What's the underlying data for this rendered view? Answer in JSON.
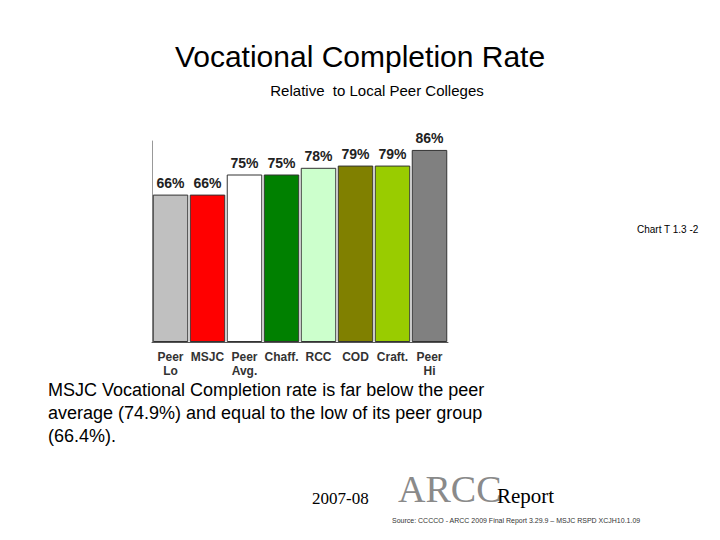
{
  "chart_data": {
    "type": "bar",
    "title": "Vocational Completion Rate",
    "subtitle": "Relative  to Local Peer Colleges",
    "chart_id": "Chart T 1.3 -2",
    "annotation": "MSJC Vocational Completion rate is far below the peer average (74.9%) and equal to the low of its peer group (66.4%).",
    "footer": {
      "year": "2007-08",
      "name": "ARCC",
      "word": "Report"
    },
    "source": "Source: CCCCO - ARCC 2009 Final Report 3.29.9 – MSJC RSPD XCJH10.1.09",
    "categories": [
      "Peer Lo",
      "MSJC",
      "Peer Avg.",
      "Chaff.",
      "RCC",
      "COD",
      "Craft.",
      "Peer Hi"
    ],
    "values": [
      66,
      66,
      75,
      75,
      78,
      79,
      79,
      86
    ],
    "value_labels": [
      "66%",
      "66%",
      "75%",
      "75%",
      "78%",
      "79%",
      "79%",
      "86%"
    ],
    "colors": [
      "#c0c0c0",
      "#ff0000",
      "#ffffff",
      "#008000",
      "#ccffcc",
      "#808000",
      "#99cc00",
      "#808080"
    ],
    "ylim": [
      0,
      90
    ],
    "tick_labels": "x",
    "data_labels": true
  }
}
